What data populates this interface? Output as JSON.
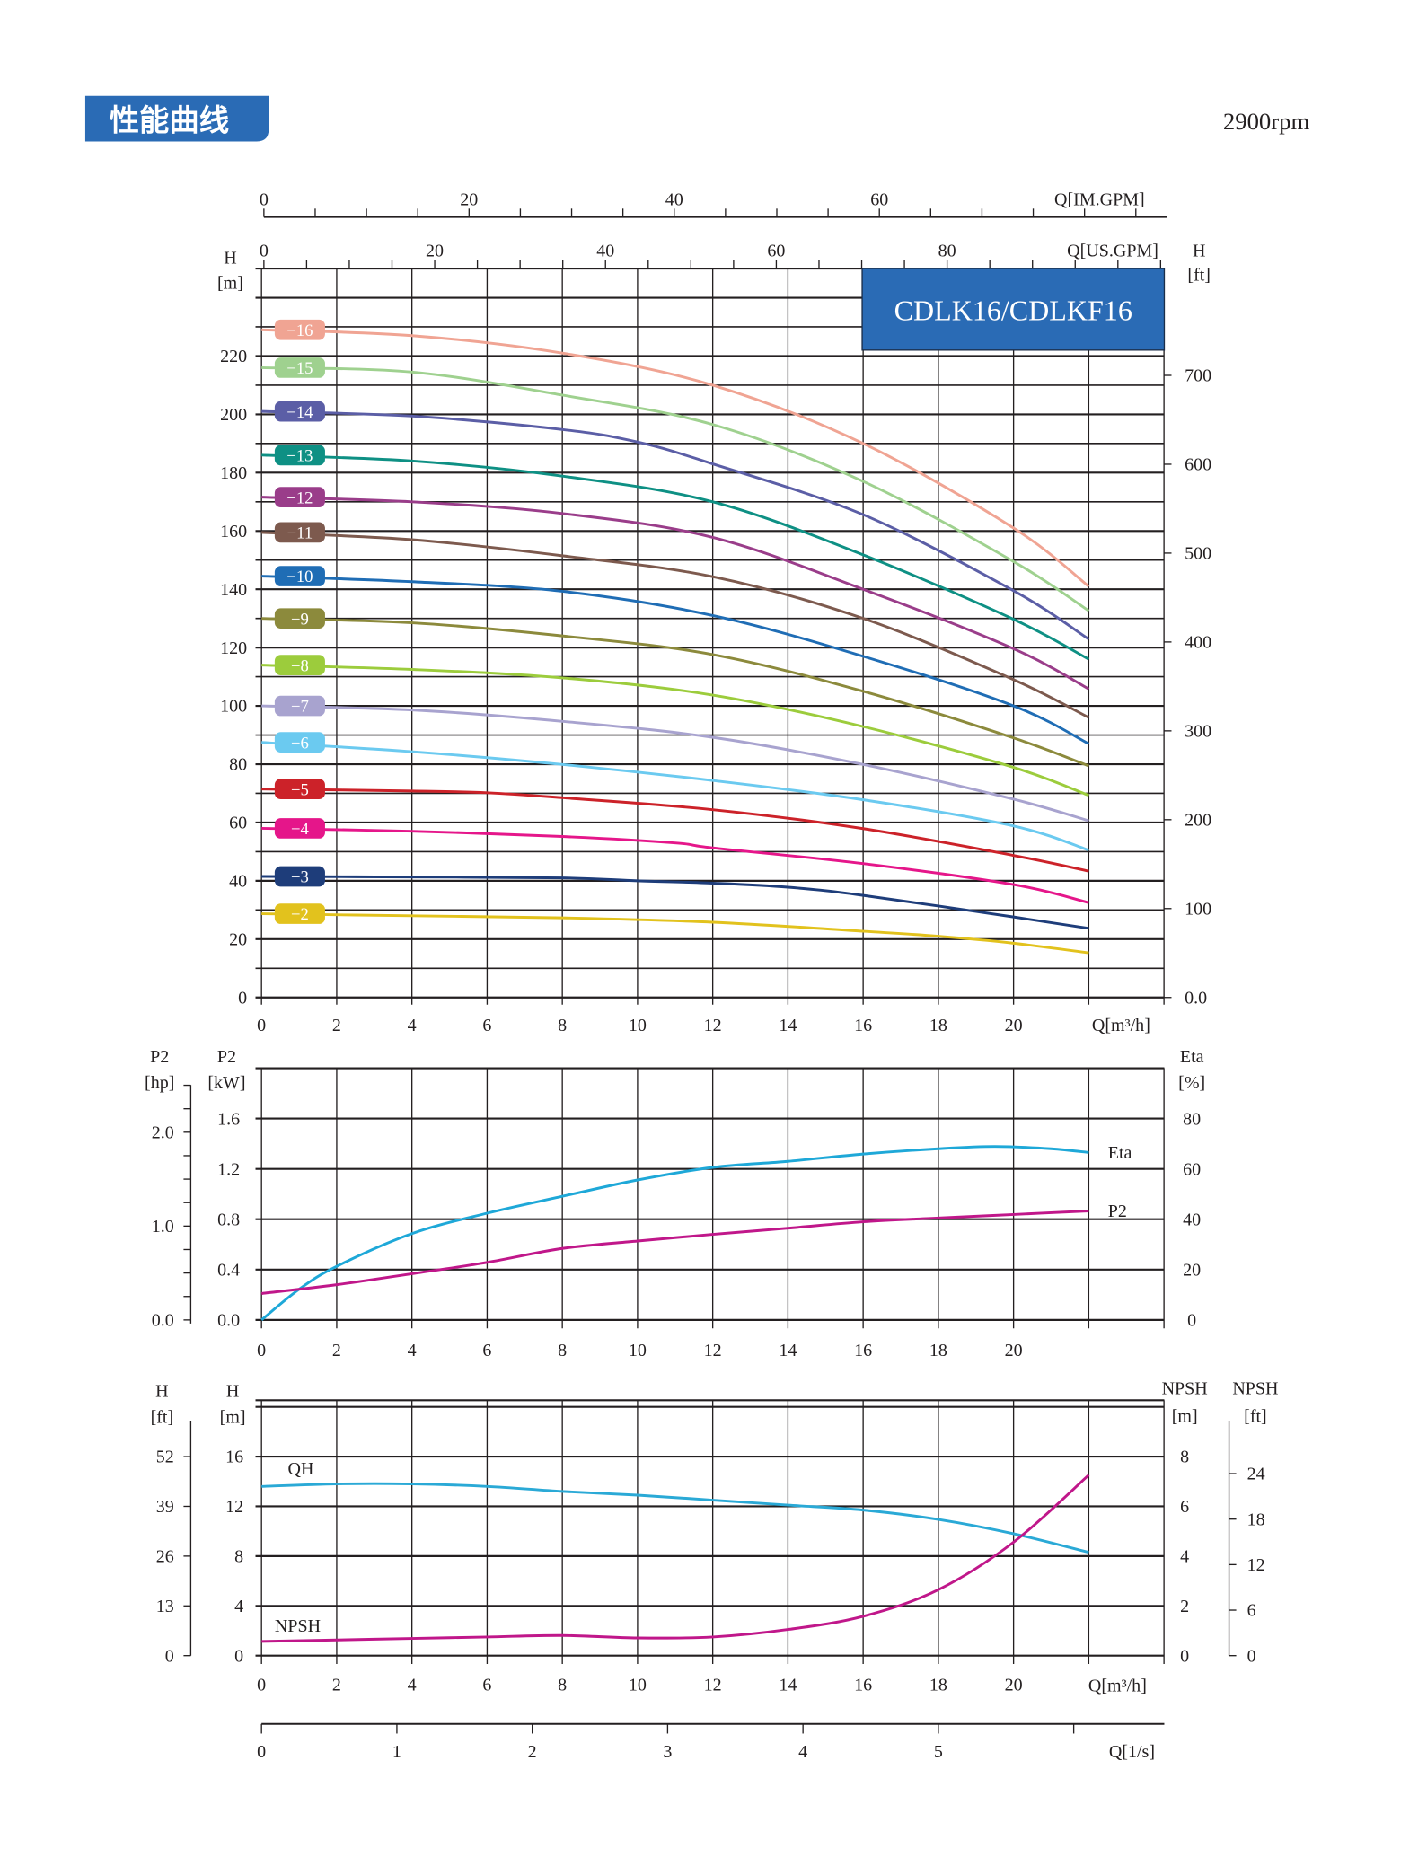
{
  "header": {
    "title": "性能曲线",
    "speed": "2900rpm"
  },
  "colors": {
    "brand_blue": "#2a6bb5",
    "eta": "#1ea8d8",
    "p2": "#c0178a",
    "qh": "#2aa9d6",
    "npsh": "#c0178a",
    "grid": "#231f20"
  },
  "chart_data": [
    {
      "type": "line",
      "title": "CDLK16/CDLKF16",
      "xlabel": "Q[m³/h]",
      "ylabel": "H",
      "ylabel_unit": "[m]",
      "y2label": "H",
      "y2label_unit": "[ft]",
      "xlim": [
        0,
        24
      ],
      "ylim": [
        0,
        250
      ],
      "x_ticks": [
        "0",
        "2",
        "4",
        "6",
        "8",
        "10",
        "12",
        "14",
        "16",
        "18",
        "20"
      ],
      "y_ticks": [
        "0",
        "20",
        "40",
        "60",
        "80",
        "100",
        "120",
        "140",
        "160",
        "180",
        "200",
        "220"
      ],
      "y2_ticks": [
        "0.0",
        "100",
        "200",
        "300",
        "400",
        "500",
        "600",
        "700"
      ],
      "grid": true,
      "top_axis_im": {
        "label": "Q[IM.GPM]",
        "ticks": [
          "0",
          "20",
          "40",
          "60"
        ]
      },
      "top_axis_us": {
        "label": "Q[US.GPM]",
        "ticks": [
          "0",
          "20",
          "40",
          "60",
          "80"
        ]
      },
      "series": [
        {
          "name": "−16",
          "color": "#f0a493",
          "x": [
            0,
            4,
            8,
            12,
            16,
            20,
            22
          ],
          "y": [
            229,
            227,
            221,
            210,
            190,
            161,
            141
          ]
        },
        {
          "name": "−15",
          "color": "#9fd18f",
          "x": [
            0,
            4,
            8,
            12,
            16,
            20,
            22
          ],
          "y": [
            216,
            214.5,
            206.6,
            196.5,
            177,
            149.5,
            132.6
          ]
        },
        {
          "name": "−14",
          "color": "#5b5ea6",
          "x": [
            0,
            4,
            8,
            10,
            12,
            16,
            20,
            22
          ],
          "y": [
            201,
            199.4,
            194.8,
            190.5,
            183,
            165.6,
            139.5,
            122.9
          ]
        },
        {
          "name": "−13",
          "color": "#0e9084",
          "x": [
            0,
            4,
            8,
            12,
            16,
            20,
            22
          ],
          "y": [
            186,
            184,
            178.8,
            170,
            151.8,
            129.7,
            116
          ]
        },
        {
          "name": "−12",
          "color": "#9a3d8a",
          "x": [
            0,
            4,
            8,
            12,
            16,
            20,
            22
          ],
          "y": [
            171.6,
            170,
            166,
            157.8,
            140,
            119.6,
            105.8
          ]
        },
        {
          "name": "−11",
          "color": "#7d5a4e",
          "x": [
            0,
            4,
            8,
            12,
            16,
            20,
            22
          ],
          "y": [
            159.5,
            157,
            151.5,
            144.3,
            130,
            109,
            96
          ]
        },
        {
          "name": "−10",
          "color": "#1f6db5",
          "x": [
            0,
            4,
            8,
            12,
            16,
            20,
            22
          ],
          "y": [
            144.5,
            142.6,
            139.3,
            131,
            117,
            100,
            87
          ]
        },
        {
          "name": "−9",
          "color": "#8c8a3c",
          "x": [
            0,
            4,
            8,
            12,
            16,
            20,
            22
          ],
          "y": [
            130,
            128.5,
            124,
            117.6,
            105,
            89,
            79.4
          ]
        },
        {
          "name": "−8",
          "color": "#9ccc3c",
          "x": [
            0,
            4,
            8,
            12,
            16,
            20,
            22
          ],
          "y": [
            114,
            112.5,
            109.6,
            103.7,
            92.9,
            78.9,
            69.3
          ]
        },
        {
          "name": "−7",
          "color": "#a8a3cf",
          "x": [
            0,
            4,
            8,
            12,
            16,
            20,
            22
          ],
          "y": [
            100,
            98.6,
            94.7,
            89.2,
            79.9,
            68,
            60.6
          ]
        },
        {
          "name": "−6",
          "color": "#6bcaf0",
          "x": [
            0,
            4,
            8,
            12,
            16,
            20,
            22
          ],
          "y": [
            87.5,
            84.3,
            79.9,
            74.4,
            67.8,
            58.8,
            50.5
          ]
        },
        {
          "name": "−5",
          "color": "#cc2229",
          "x": [
            0,
            4,
            6,
            8,
            12,
            16,
            20,
            22
          ],
          "y": [
            71.5,
            70.8,
            70.2,
            68.5,
            64.4,
            57.9,
            48.7,
            43.3
          ]
        },
        {
          "name": "−4",
          "color": "#e5168a",
          "x": [
            0,
            4,
            8,
            11,
            12,
            16,
            20,
            22
          ],
          "y": [
            58,
            57,
            55.2,
            53,
            51.3,
            45.9,
            38.7,
            32.5
          ]
        },
        {
          "name": "−3",
          "color": "#1e3d7a",
          "x": [
            0,
            4,
            8,
            10,
            12,
            14,
            16,
            20,
            22
          ],
          "y": [
            41.5,
            41.3,
            41,
            40,
            39.2,
            37.8,
            35,
            27.6,
            23.7
          ]
        },
        {
          "name": "−2",
          "color": "#e2c21d",
          "x": [
            0,
            4,
            8,
            12,
            16,
            18,
            20,
            22
          ],
          "y": [
            28.7,
            28,
            27.3,
            25.8,
            22.7,
            21,
            18.6,
            15.3
          ]
        }
      ]
    },
    {
      "type": "line",
      "xlabel": "Q[m³/h]",
      "ylabel_hp": "P2",
      "ylabel_hp_unit": "[hp]",
      "ylabel": "P2",
      "ylabel_unit": "[kW]",
      "y2label": "Eta",
      "y2label_unit": "[%]",
      "xlim": [
        0,
        24
      ],
      "ylim": [
        0,
        2.0
      ],
      "y2lim": [
        0,
        100
      ],
      "x_ticks": [
        "0",
        "2",
        "4",
        "6",
        "8",
        "10",
        "12",
        "14",
        "16",
        "18",
        "20"
      ],
      "y_ticks": [
        "0.0",
        "0.4",
        "0.8",
        "1.2",
        "1.6"
      ],
      "hp_ticks": [
        "0.0",
        "1.0",
        "2.0"
      ],
      "y2_ticks": [
        "0",
        "20",
        "40",
        "60",
        "80"
      ],
      "series": [
        {
          "name": "Eta",
          "axis": "right",
          "unit": "%",
          "x": [
            0,
            1,
            2,
            4,
            6,
            8,
            10,
            12,
            14,
            16,
            18,
            19.5,
            21,
            22
          ],
          "y": [
            0,
            12.2,
            21.3,
            34.3,
            42.4,
            49.1,
            55.6,
            60.6,
            63,
            65.9,
            68,
            68.9,
            68,
            66.5
          ]
        },
        {
          "name": "P2",
          "axis": "left",
          "unit": "kW",
          "x": [
            0,
            2,
            4,
            6,
            8,
            10,
            12,
            14,
            16,
            18,
            20,
            22
          ],
          "y": [
            0.21,
            0.28,
            0.367,
            0.457,
            0.568,
            0.627,
            0.68,
            0.729,
            0.78,
            0.81,
            0.838,
            0.866
          ]
        }
      ]
    },
    {
      "type": "line",
      "xlabel": "Q[m³/h]",
      "x2label": "Q[1/s]",
      "ylabel_ft": "H",
      "ylabel_ft_unit": "[ft]",
      "ylabel": "H",
      "ylabel_unit": "[m]",
      "y2label": "NPSH",
      "y2label_unit": "[m]",
      "y3label": "NPSH",
      "y3label_unit": "[ft]",
      "xlim": [
        0,
        24
      ],
      "ylim": [
        0,
        20
      ],
      "y2lim": [
        0,
        10
      ],
      "x_ticks": [
        "0",
        "2",
        "4",
        "6",
        "8",
        "10",
        "12",
        "14",
        "16",
        "18",
        "20"
      ],
      "x2_ticks": [
        "0",
        "1",
        "2",
        "3",
        "4",
        "5"
      ],
      "y_ticks": [
        "0",
        "4",
        "8",
        "12",
        "16"
      ],
      "ft_ticks": [
        "0",
        "13",
        "26",
        "39",
        "52"
      ],
      "y2_ticks": [
        "0",
        "2",
        "4",
        "6",
        "8"
      ],
      "y3_ticks": [
        "0",
        "6",
        "12",
        "18",
        "24"
      ],
      "series": [
        {
          "name": "QH",
          "axis": "left",
          "x": [
            0,
            2,
            4,
            6,
            8,
            10,
            12,
            14,
            16,
            18,
            20,
            22
          ],
          "y": [
            13.6,
            13.8,
            13.8,
            13.6,
            13.2,
            12.9,
            12.5,
            12.1,
            11.7,
            10.95,
            9.8,
            8.3
          ]
        },
        {
          "name": "NPSH",
          "axis": "right",
          "x": [
            0,
            2,
            4,
            6,
            8,
            10,
            12,
            14,
            16,
            18,
            20,
            22
          ],
          "y": [
            0.57,
            0.63,
            0.69,
            0.75,
            0.81,
            0.71,
            0.75,
            1.05,
            1.58,
            2.65,
            4.56,
            7.26
          ]
        }
      ]
    }
  ]
}
